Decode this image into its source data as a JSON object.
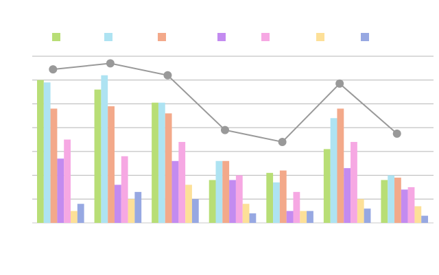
{
  "chart_data": {
    "type": "bar",
    "categories": [
      "",
      "",
      "",
      "",
      "",
      "",
      ""
    ],
    "ylim": [
      0,
      14
    ],
    "grid": true,
    "legend_position": "top",
    "series": [
      {
        "values": [
          12.0,
          11.2,
          10.1,
          3.6,
          4.2,
          6.2,
          3.6
        ],
        "color": "#b8de76"
      },
      {
        "values": [
          11.8,
          12.4,
          10.1,
          5.2,
          3.4,
          8.8,
          4.0
        ],
        "color": "#aee3f2"
      },
      {
        "values": [
          9.6,
          9.8,
          9.2,
          5.2,
          4.4,
          9.6,
          3.8
        ],
        "color": "#f3a98a"
      },
      {
        "values": [
          5.4,
          3.2,
          5.2,
          3.6,
          1.0,
          4.6,
          2.8
        ],
        "color": "#c38bf0"
      },
      {
        "values": [
          7.0,
          5.6,
          6.8,
          4.0,
          2.6,
          6.8,
          3.0
        ],
        "color": "#f6a8e3"
      },
      {
        "values": [
          1.0,
          2.0,
          3.2,
          1.6,
          1.0,
          2.0,
          1.4
        ],
        "color": "#fde098"
      },
      {
        "values": [
          1.6,
          2.6,
          2.0,
          0.8,
          1.0,
          1.2,
          0.6
        ],
        "color": "#97a8e2"
      }
    ],
    "line": {
      "values": [
        12.9,
        13.4,
        12.4,
        7.8,
        6.8,
        11.7,
        7.5
      ],
      "color": "#999999"
    }
  }
}
